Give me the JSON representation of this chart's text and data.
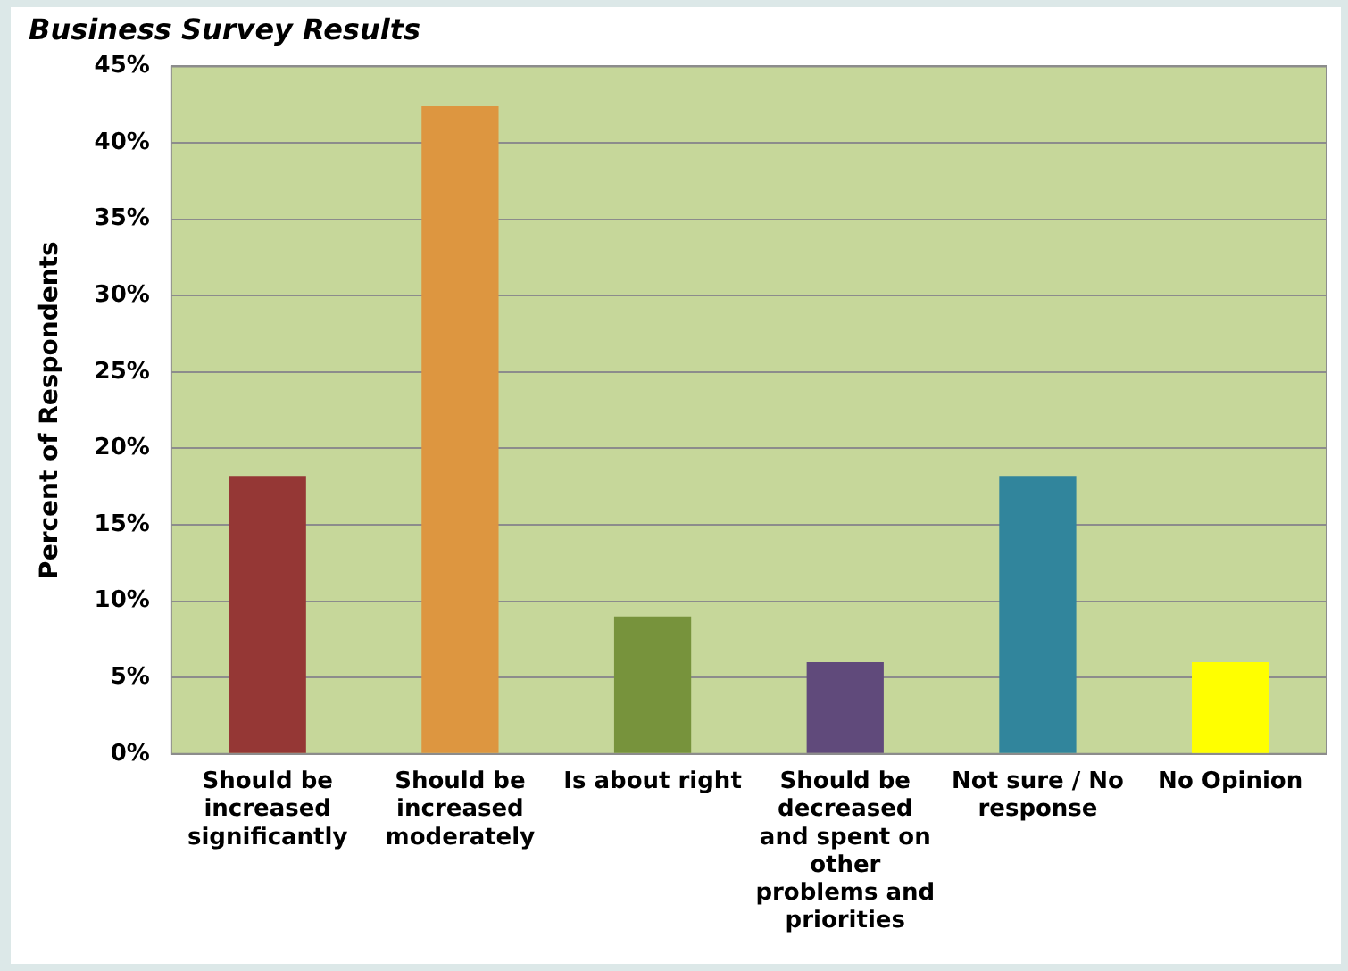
{
  "chart_data": {
    "type": "bar",
    "title": "Business Survey Results",
    "ylabel": "Percent of Respondents",
    "categories": [
      "Should be increased significantly",
      "Should be increased moderately",
      "Is about right",
      "Should be decreased and spent on other problems and priorities",
      "Not sure / No response",
      "No Opinion"
    ],
    "values": [
      18.2,
      42.4,
      9.0,
      6.0,
      18.2,
      6.0
    ],
    "colors": [
      "#953735",
      "#dd9640",
      "#77933c",
      "#604a7b",
      "#31859c",
      "#ffff00"
    ],
    "ylim": [
      0,
      45
    ],
    "yticks": [
      {
        "value": 0,
        "label": "0%"
      },
      {
        "value": 5,
        "label": "5%"
      },
      {
        "value": 10,
        "label": "10%"
      },
      {
        "value": 15,
        "label": "15%"
      },
      {
        "value": 20,
        "label": "20%"
      },
      {
        "value": 25,
        "label": "25%"
      },
      {
        "value": 30,
        "label": "30%"
      },
      {
        "value": 35,
        "label": "35%"
      },
      {
        "value": 40,
        "label": "40%"
      },
      {
        "value": 45,
        "label": "45%"
      }
    ],
    "grid": "y",
    "legend": false
  }
}
